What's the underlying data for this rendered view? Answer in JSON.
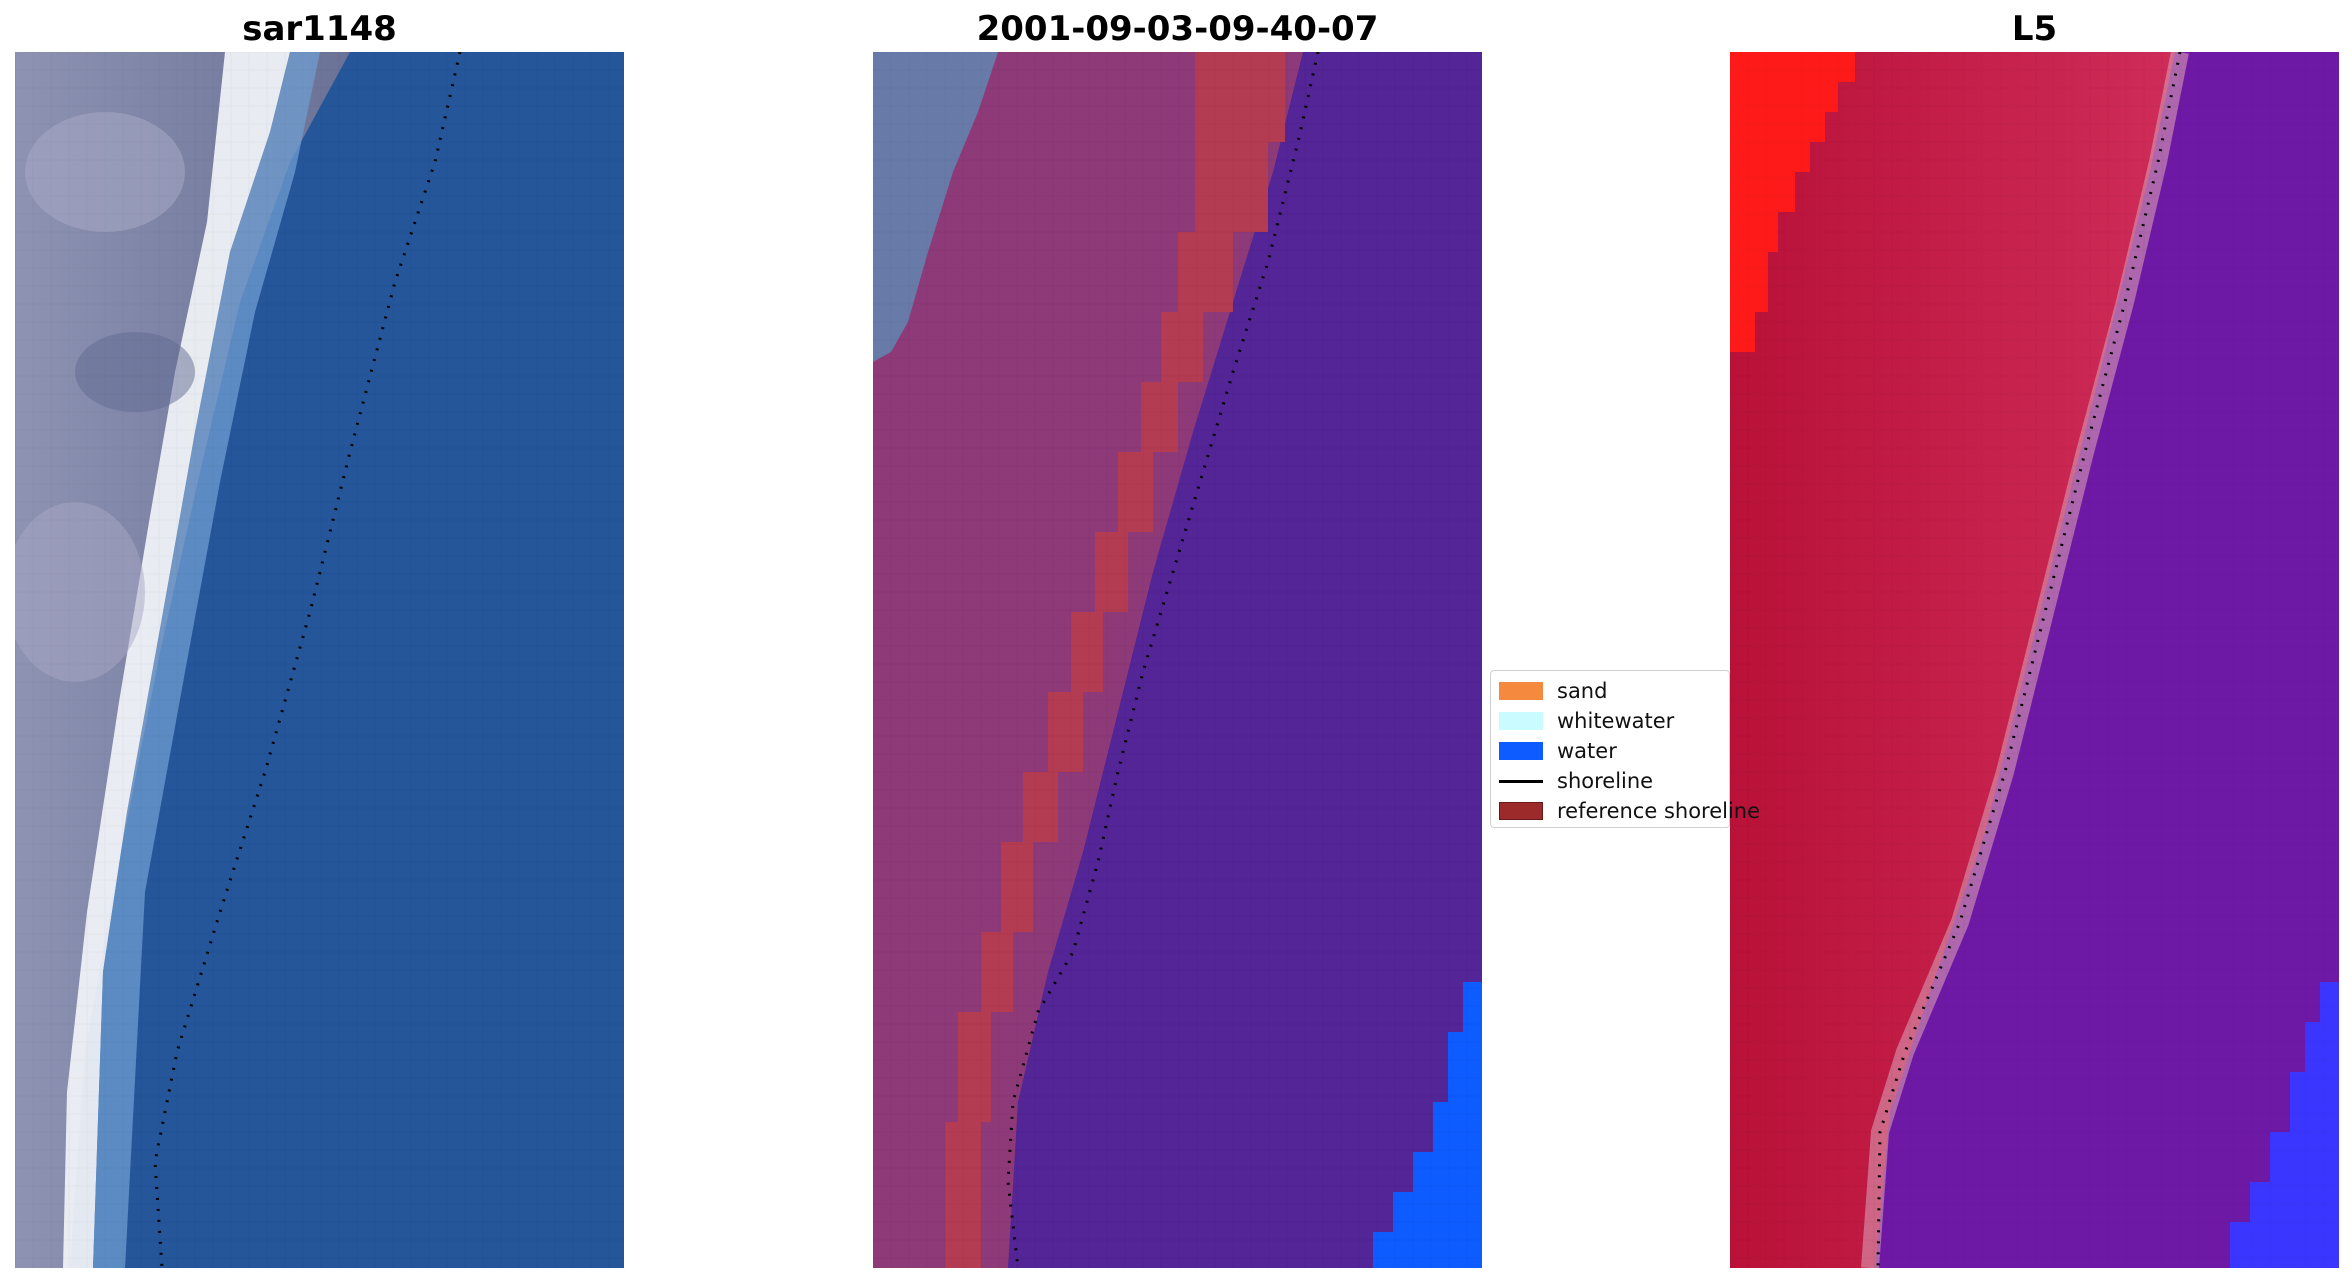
{
  "panels": [
    {
      "title": "sar1148"
    },
    {
      "title": "2001-09-03-09-40-07"
    },
    {
      "title": "L5"
    }
  ],
  "legend": {
    "items": [
      {
        "label": "sand",
        "color": "#f5893d",
        "type": "patch"
      },
      {
        "label": "whitewater",
        "color": "#c9fbff",
        "type": "patch"
      },
      {
        "label": "water",
        "color": "#0c5cff",
        "type": "patch"
      },
      {
        "label": "shoreline",
        "color": "#000000",
        "type": "line"
      },
      {
        "label": "reference shoreline",
        "color": "#9c2a2a",
        "type": "patch"
      }
    ]
  },
  "colors": {
    "rgb_water": "#25569a",
    "rgb_land": "#7c85aa",
    "rgb_whitewater": "#f2f4f7",
    "class_land": "#8e3a78",
    "class_band": "#b33b52",
    "class_water": "#532596",
    "class_water_corner": "#0c5cff",
    "ndwi_land": "#c41a44",
    "ndwi_red": "#ff1a1a",
    "ndwi_water": "#6e19a6",
    "ndwi_blue": "#3a36ff",
    "shoreline": "#000000"
  }
}
